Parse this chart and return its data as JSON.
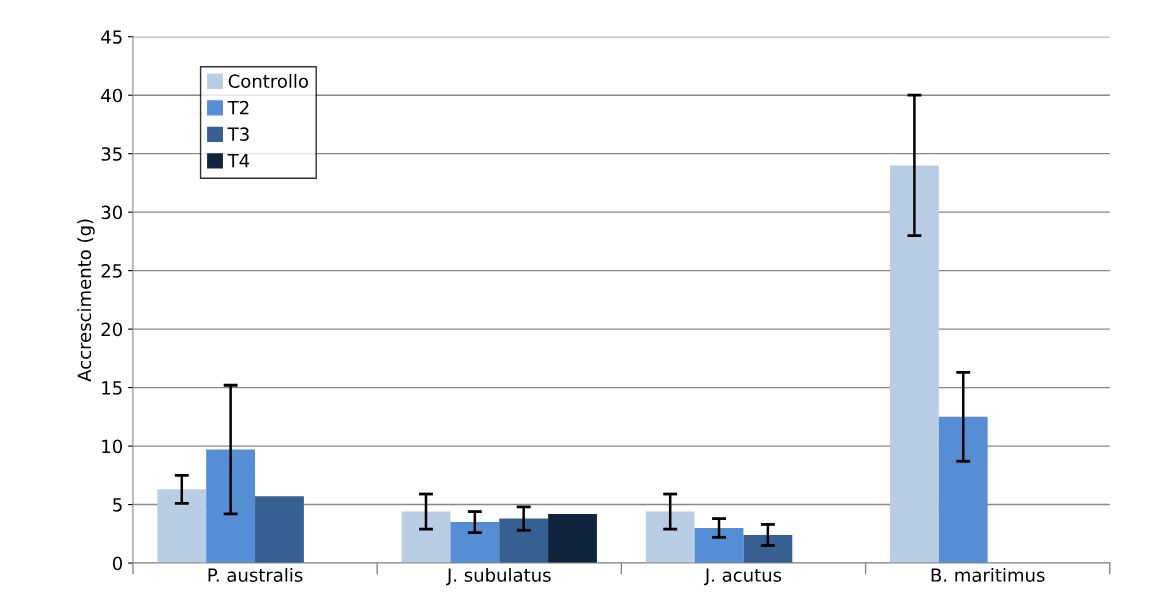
{
  "chart_data": {
    "type": "bar",
    "ylabel": "Accrescimento (g)",
    "categories": [
      "P. australis",
      "J. subulatus",
      "J. acutus",
      "B. maritimus"
    ],
    "series": [
      {
        "name": "Controllo",
        "color": "#b9cde5",
        "values": [
          6.3,
          4.4,
          4.4,
          34
        ],
        "errors": [
          1.2,
          1.5,
          1.5,
          6
        ]
      },
      {
        "name": "T2",
        "color": "#558ed5",
        "values": [
          9.7,
          3.5,
          3.0,
          12.5
        ],
        "errors": [
          5.5,
          0.9,
          0.8,
          3.8
        ]
      },
      {
        "name": "T3",
        "color": "#376092",
        "values": [
          5.7,
          3.8,
          2.4,
          null
        ],
        "errors": [
          null,
          1.0,
          0.9,
          null
        ]
      },
      {
        "name": "T4",
        "color": "#10243e",
        "values": [
          null,
          4.2,
          null,
          null
        ],
        "errors": [
          null,
          null,
          null,
          null
        ]
      }
    ],
    "ylim": [
      0,
      45
    ],
    "yticks": [
      0,
      5,
      10,
      15,
      20,
      25,
      30,
      35,
      40,
      45
    ],
    "grid": "y",
    "legend": "top left"
  }
}
